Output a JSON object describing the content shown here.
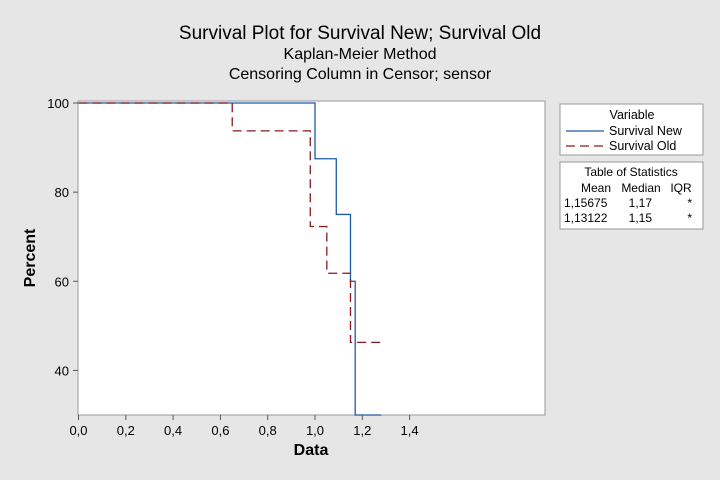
{
  "chart_data": {
    "type": "line",
    "title": "Survival Plot for Survival New; Survival Old",
    "subtitle_lines": [
      "Kaplan-Meier Method",
      "Censoring Column in Censor; sensor"
    ],
    "xlabel": "Data",
    "ylabel": "Percent",
    "xlim": [
      0.0,
      1.4
    ],
    "ylim": [
      30,
      100
    ],
    "xticks": [
      "0,0",
      "0,2",
      "0,4",
      "0,6",
      "0,8",
      "1,0",
      "1,2",
      "1,4"
    ],
    "xtick_values": [
      0.0,
      0.2,
      0.4,
      0.6,
      0.8,
      1.0,
      1.2,
      1.4
    ],
    "yticks": [
      "40",
      "60",
      "80",
      "100"
    ],
    "ytick_values": [
      40,
      60,
      80,
      100
    ],
    "grid": false,
    "legend_position": "right",
    "legend_title": "Variable",
    "series": [
      {
        "name": "Survival New",
        "style": "solid",
        "color": "#1f5aa6",
        "steps": [
          {
            "x": 0.0,
            "y": 100
          },
          {
            "x": 1.0,
            "y": 87.5
          },
          {
            "x": 1.09,
            "y": 75
          },
          {
            "x": 1.15,
            "y": 60
          },
          {
            "x": 1.17,
            "y": 30
          },
          {
            "x": 1.28,
            "y": 30
          }
        ]
      },
      {
        "name": "Survival Old",
        "style": "dashed",
        "color": "#8b1a1a",
        "steps": [
          {
            "x": 0.0,
            "y": 100
          },
          {
            "x": 0.65,
            "y": 93.75
          },
          {
            "x": 0.98,
            "y": 72.3
          },
          {
            "x": 1.05,
            "y": 61.8
          },
          {
            "x": 1.15,
            "y": 46.3
          },
          {
            "x": 1.28,
            "y": 46.3
          }
        ]
      }
    ],
    "stats_table": {
      "title": "Table of Statistics",
      "headers": [
        "Mean",
        "Median",
        "IQR"
      ],
      "rows": [
        [
          "1,15675",
          "1,17",
          "*"
        ],
        [
          "1,13122",
          "1,15",
          "*"
        ]
      ]
    }
  }
}
